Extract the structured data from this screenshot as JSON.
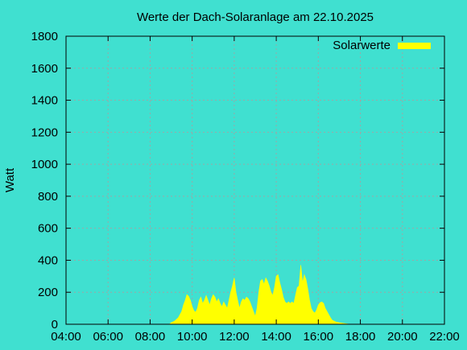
{
  "colors": {
    "background": "#40e0d0",
    "series": "#ffff00",
    "axis": "#000000",
    "grid": "#9aa8a6"
  },
  "chart_data": {
    "type": "area",
    "title": "Werte der Dach-Solaranlage am 22.10.2025",
    "xlabel": "",
    "ylabel": "Watt",
    "xlim": [
      "04:00",
      "22:00"
    ],
    "ylim": [
      0,
      1800
    ],
    "x_ticks": [
      "04:00",
      "06:00",
      "08:00",
      "10:00",
      "12:00",
      "14:00",
      "16:00",
      "18:00",
      "20:00",
      "22:00"
    ],
    "y_ticks": [
      0,
      200,
      400,
      600,
      800,
      1000,
      1200,
      1400,
      1600,
      1800
    ],
    "grid": true,
    "legend_position": "top-right",
    "series": [
      {
        "name": "Solarwerte",
        "points": [
          [
            "08:55",
            0
          ],
          [
            "09:00",
            10
          ],
          [
            "09:10",
            20
          ],
          [
            "09:20",
            40
          ],
          [
            "09:30",
            80
          ],
          [
            "09:35",
            120
          ],
          [
            "09:40",
            150
          ],
          [
            "09:45",
            185
          ],
          [
            "09:50",
            175
          ],
          [
            "09:55",
            150
          ],
          [
            "10:00",
            110
          ],
          [
            "10:05",
            85
          ],
          [
            "10:10",
            75
          ],
          [
            "10:15",
            100
          ],
          [
            "10:20",
            150
          ],
          [
            "10:25",
            170
          ],
          [
            "10:30",
            130
          ],
          [
            "10:35",
            150
          ],
          [
            "10:40",
            180
          ],
          [
            "10:45",
            150
          ],
          [
            "10:50",
            120
          ],
          [
            "10:55",
            160
          ],
          [
            "11:00",
            185
          ],
          [
            "11:05",
            170
          ],
          [
            "11:10",
            140
          ],
          [
            "11:15",
            160
          ],
          [
            "11:20",
            130
          ],
          [
            "11:25",
            110
          ],
          [
            "11:30",
            140
          ],
          [
            "11:35",
            120
          ],
          [
            "11:40",
            100
          ],
          [
            "11:45",
            150
          ],
          [
            "11:50",
            200
          ],
          [
            "11:55",
            240
          ],
          [
            "12:00",
            290
          ],
          [
            "12:05",
            200
          ],
          [
            "12:10",
            150
          ],
          [
            "12:15",
            100
          ],
          [
            "12:20",
            140
          ],
          [
            "12:25",
            160
          ],
          [
            "12:30",
            150
          ],
          [
            "12:35",
            170
          ],
          [
            "12:40",
            160
          ],
          [
            "12:45",
            140
          ],
          [
            "12:50",
            110
          ],
          [
            "12:55",
            80
          ],
          [
            "13:00",
            50
          ],
          [
            "13:05",
            100
          ],
          [
            "13:10",
            200
          ],
          [
            "13:15",
            270
          ],
          [
            "13:20",
            280
          ],
          [
            "13:25",
            250
          ],
          [
            "13:30",
            290
          ],
          [
            "13:35",
            270
          ],
          [
            "13:40",
            240
          ],
          [
            "13:45",
            200
          ],
          [
            "13:50",
            180
          ],
          [
            "13:55",
            230
          ],
          [
            "14:00",
            300
          ],
          [
            "14:05",
            310
          ],
          [
            "14:10",
            260
          ],
          [
            "14:15",
            220
          ],
          [
            "14:20",
            170
          ],
          [
            "14:25",
            140
          ],
          [
            "14:30",
            130
          ],
          [
            "14:35",
            140
          ],
          [
            "14:40",
            130
          ],
          [
            "14:45",
            140
          ],
          [
            "14:50",
            130
          ],
          [
            "14:55",
            180
          ],
          [
            "15:00",
            230
          ],
          [
            "15:05",
            240
          ],
          [
            "15:10",
            370
          ],
          [
            "15:15",
            260
          ],
          [
            "15:20",
            310
          ],
          [
            "15:25",
            280
          ],
          [
            "15:30",
            220
          ],
          [
            "15:35",
            150
          ],
          [
            "15:40",
            100
          ],
          [
            "15:45",
            80
          ],
          [
            "15:50",
            70
          ],
          [
            "15:55",
            90
          ],
          [
            "16:00",
            120
          ],
          [
            "16:05",
            135
          ],
          [
            "16:10",
            140
          ],
          [
            "16:15",
            130
          ],
          [
            "16:20",
            100
          ],
          [
            "16:25",
            80
          ],
          [
            "16:30",
            60
          ],
          [
            "16:35",
            40
          ],
          [
            "16:40",
            25
          ],
          [
            "16:50",
            15
          ],
          [
            "17:00",
            10
          ],
          [
            "17:15",
            5
          ],
          [
            "17:30",
            0
          ]
        ]
      }
    ]
  }
}
